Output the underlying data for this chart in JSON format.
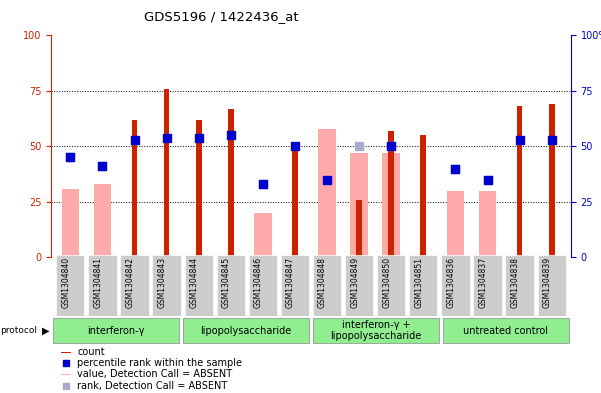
{
  "title": "GDS5196 / 1422436_at",
  "samples": [
    "GSM1304840",
    "GSM1304841",
    "GSM1304842",
    "GSM1304843",
    "GSM1304844",
    "GSM1304845",
    "GSM1304846",
    "GSM1304847",
    "GSM1304848",
    "GSM1304849",
    "GSM1304850",
    "GSM1304851",
    "GSM1304836",
    "GSM1304837",
    "GSM1304838",
    "GSM1304839"
  ],
  "count_values": [
    0,
    0,
    62,
    76,
    62,
    67,
    0,
    49,
    0,
    26,
    57,
    55,
    0,
    0,
    68,
    69
  ],
  "rank_values": [
    45,
    41,
    53,
    54,
    54,
    55,
    33,
    50,
    35,
    0,
    50,
    0,
    40,
    35,
    53,
    53
  ],
  "absent_value_values": [
    31,
    33,
    0,
    0,
    0,
    0,
    20,
    0,
    58,
    47,
    47,
    0,
    30,
    30,
    0,
    0
  ],
  "absent_rank_values": [
    45,
    41,
    0,
    0,
    0,
    0,
    33,
    0,
    0,
    50,
    50,
    0,
    40,
    35,
    0,
    0
  ],
  "groups": [
    {
      "label": "interferon-γ",
      "start": 0,
      "end": 4,
      "color": "#90ee90"
    },
    {
      "label": "lipopolysaccharide",
      "start": 4,
      "end": 8,
      "color": "#90ee90"
    },
    {
      "label": "interferon-γ +\nlipopolysaccharide",
      "start": 8,
      "end": 12,
      "color": "#90ee90"
    },
    {
      "label": "untreated control",
      "start": 12,
      "end": 16,
      "color": "#90ee90"
    }
  ],
  "ylim": [
    0,
    100
  ],
  "yticks": [
    0,
    25,
    50,
    75,
    100
  ],
  "bar_color_count": "#cc2200",
  "bar_color_absent_value": "#ffaaaa",
  "dot_color_rank": "#0000cc",
  "dot_color_absent_rank": "#aaaacc",
  "left_axis_color": "#cc2200",
  "right_axis_color": "#0000cc",
  "bg_color": "#ffffff",
  "plot_bg": "#ffffff",
  "tick_label_bg": "#cccccc",
  "absent_bar_width": 0.55,
  "count_bar_width": 0.18,
  "dot_size": 28
}
